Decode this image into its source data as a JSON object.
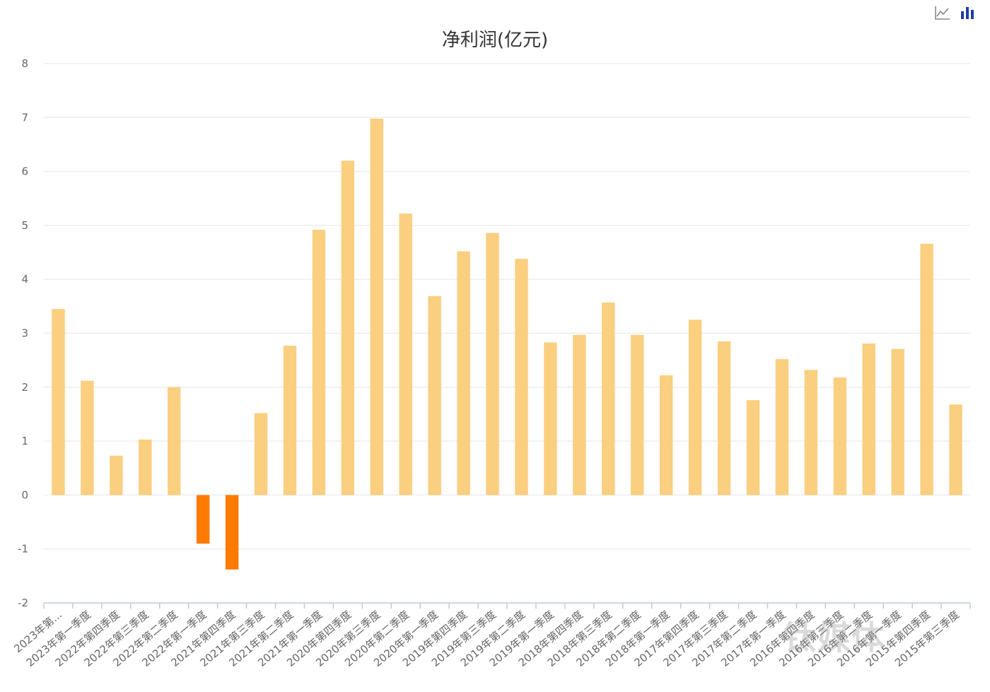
{
  "toolbar": {
    "line_icon": "line-chart-icon",
    "bar_icon": "bar-chart-icon"
  },
  "colors": {
    "positive": "#FACF80",
    "negative": "#FF7A00",
    "grid": "#EEEEEE",
    "axis": "#BFCBDA",
    "tick_text": "#666666",
    "toolbar_inactive": "#888888",
    "toolbar_active": "#1E3DA8"
  },
  "watermark": "钛媒体",
  "chart_data": {
    "type": "bar",
    "title": "净利润(亿元)",
    "xlabel": "",
    "ylabel": "",
    "ylim": [
      -2,
      8
    ],
    "yticks": [
      -2,
      -1,
      0,
      1,
      2,
      3,
      4,
      5,
      6,
      7,
      8
    ],
    "grid": true,
    "categories": [
      "2023年第...",
      "2023年第一季度",
      "2022年第四季度",
      "2022年第三季度",
      "2022年第二季度",
      "2022年第一季度",
      "2021年第四季度",
      "2021年第三季度",
      "2021年第二季度",
      "2021年第一季度",
      "2020年第四季度",
      "2020年第三季度",
      "2020年第二季度",
      "2020年第一季度",
      "2019年第四季度",
      "2019年第三季度",
      "2019年第二季度",
      "2019年第一季度",
      "2018年第四季度",
      "2018年第三季度",
      "2018年第二季度",
      "2018年第一季度",
      "2017年第四季度",
      "2017年第三季度",
      "2017年第二季度",
      "2017年第一季度",
      "2016年第四季度",
      "2016年第三季度",
      "2016年第二季度",
      "2016年第一季度",
      "2015年第四季度",
      "2015年第三季度"
    ],
    "values": [
      3.45,
      2.12,
      0.73,
      1.03,
      2.0,
      -0.9,
      -1.38,
      1.52,
      2.77,
      4.92,
      6.2,
      6.98,
      5.22,
      3.69,
      4.52,
      4.86,
      4.38,
      2.83,
      2.97,
      3.57,
      2.97,
      2.22,
      3.25,
      2.85,
      1.76,
      2.52,
      2.32,
      2.18,
      2.81,
      2.71,
      4.66,
      1.68
    ]
  }
}
